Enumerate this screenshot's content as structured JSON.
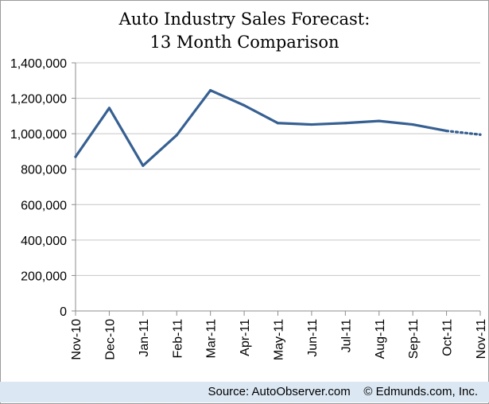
{
  "chart_data": {
    "type": "line",
    "title": "Auto Industry Sales Forecast:",
    "subtitle": "13 Month Comparison",
    "categories": [
      "Nov-10",
      "Dec-10",
      "Jan-11",
      "Feb-11",
      "Mar-11",
      "Apr-11",
      "May-11",
      "Jun-11",
      "Jul-11",
      "Aug-11",
      "Sep-11",
      "Oct-11",
      "Nov-11"
    ],
    "series": [
      {
        "values": [
          870000,
          1145000,
          820000,
          992000,
          1245000,
          1160000,
          1060000,
          1052000,
          1060000,
          1072000,
          1052000,
          1016000,
          995000
        ],
        "color": "#376092",
        "forecast_from_index": 11
      }
    ],
    "ylim": [
      0,
      1400000
    ],
    "yticks": [
      "0",
      "200,000",
      "400,000",
      "600,000",
      "800,000",
      "1,000,000",
      "1,200,000",
      "1,400,000"
    ],
    "grid": true,
    "legend": "none"
  },
  "footer": {
    "text": "Source: AutoObserver.com    © Edmunds.com, Inc.",
    "background": "#dbe7f3"
  }
}
